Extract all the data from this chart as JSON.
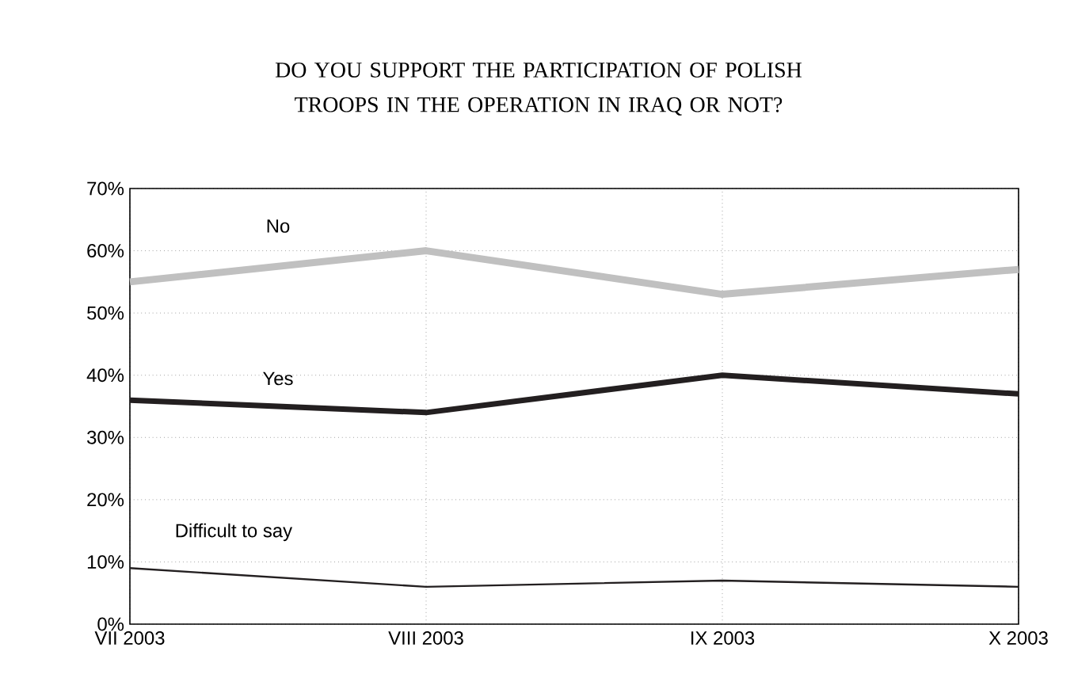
{
  "chart_data": {
    "type": "line",
    "title": "DO YOU SUPPORT THE PARTICIPATION OF POLISH TROOPS IN THE OPERATION IN IRAQ OR NOT?",
    "categories": [
      "VII 2003",
      "VIII 2003",
      "IX 2003",
      "X 2003"
    ],
    "series": [
      {
        "name": "No",
        "color": "#c0c0c0",
        "values": [
          55,
          60,
          53,
          57
        ]
      },
      {
        "name": "Yes",
        "color": "#231f20",
        "values": [
          36,
          34,
          40,
          37
        ]
      },
      {
        "name": "Difficult to say",
        "color": "#231f20",
        "values": [
          9,
          6,
          7,
          6
        ]
      }
    ],
    "ylim": [
      0,
      70
    ],
    "yticks": [
      {
        "value": 0,
        "label": "0%"
      },
      {
        "value": 10,
        "label": "10%"
      },
      {
        "value": 20,
        "label": "20%"
      },
      {
        "value": 30,
        "label": "30%"
      },
      {
        "value": 40,
        "label": "40%"
      },
      {
        "value": 50,
        "label": "50%"
      },
      {
        "value": 60,
        "label": "60%"
      },
      {
        "value": 70,
        "label": "70%"
      }
    ],
    "grid": true,
    "legend": false,
    "marker": "none",
    "line_style": "solid"
  }
}
